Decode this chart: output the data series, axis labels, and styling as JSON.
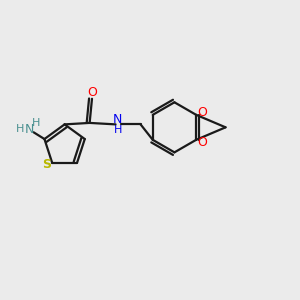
{
  "background_color": "#ebebeb",
  "bond_color": "#1a1a1a",
  "S_color": "#b8b800",
  "N_color": "#0000ee",
  "O_color": "#ff0000",
  "teal_color": "#4a9090",
  "figsize": [
    3.0,
    3.0
  ],
  "dpi": 100,
  "xlim": [
    0,
    10
  ],
  "ylim": [
    0,
    10
  ]
}
